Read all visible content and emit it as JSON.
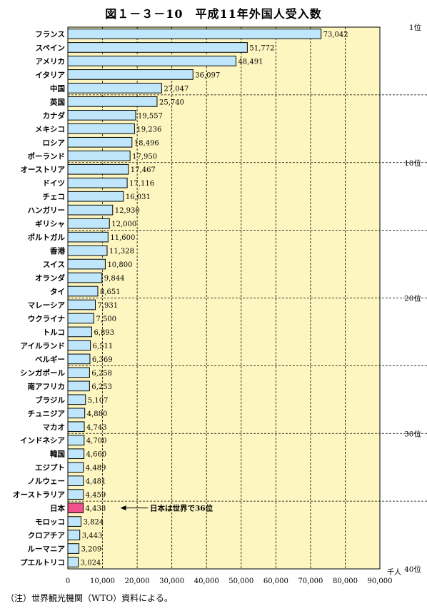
{
  "title": "図１－３－10　平成11年外国人受入数",
  "note": "（注）世界観光機関（WTO）資料による。",
  "chart_data": {
    "type": "bar",
    "orientation": "horizontal",
    "title": "図１－３－10　平成11年外国人受入数",
    "xlabel": "",
    "ylabel": "",
    "unit_label": "千人",
    "xlim": [
      0,
      90000
    ],
    "x_ticks": [
      "0",
      "10,000",
      "20,000",
      "30,000",
      "40,000",
      "50,000",
      "60,000",
      "70,000",
      "80,000",
      "90,000"
    ],
    "grid": "vertical dashed every 10,000; horizontal dashed every 5 ranks",
    "rank_labels": [
      "1位",
      "10位",
      "20位",
      "30位",
      "40位"
    ],
    "categories": [
      "フランス",
      "スペイン",
      "アメリカ",
      "イタリア",
      "中国",
      "英国",
      "カナダ",
      "メキシコ",
      "ロシア",
      "ポーランド",
      "オーストリア",
      "ドイツ",
      "チェコ",
      "ハンガリー",
      "ギリシャ",
      "ポルトガル",
      "香港",
      "スイス",
      "オランダ",
      "タイ",
      "マレーシア",
      "ウクライナ",
      "トルコ",
      "アイルランド",
      "ベルギー",
      "シンガポール",
      "南アフリカ",
      "ブラジル",
      "チュニジア",
      "マカオ",
      "インドネシア",
      "韓国",
      "エジプト",
      "ノルウェー",
      "オーストラリア",
      "日本",
      "モロッコ",
      "クロアチア",
      "ルーマニア",
      "プエルトリコ"
    ],
    "values": [
      73042,
      51772,
      48491,
      36097,
      27047,
      25740,
      19557,
      19236,
      18496,
      17950,
      17467,
      17116,
      16031,
      12930,
      12000,
      11600,
      11328,
      10800,
      9844,
      8651,
      7931,
      7500,
      6893,
      6511,
      6369,
      6258,
      6253,
      5107,
      4880,
      4743,
      4700,
      4660,
      4489,
      4481,
      4459,
      4438,
      3824,
      3443,
      3209,
      3024
    ],
    "value_labels": [
      "73,042",
      "51,772",
      "48,491",
      "36,097",
      "27,047",
      "25,740",
      "19,557",
      "19,236",
      "18,496",
      "17,950",
      "17,467",
      "17,116",
      "16,031",
      "12,930",
      "12,000",
      "11,600",
      "11,328",
      "10,800",
      "9,844",
      "8,651",
      "7,931",
      "7,500",
      "6,893",
      "6,511",
      "6,369",
      "6,258",
      "6,253",
      "5,107",
      "4,880",
      "4,743",
      "4,700",
      "4,660",
      "4,489",
      "4,481",
      "4,459",
      "4,438",
      "3,824",
      "3,443",
      "3,209",
      "3,024"
    ],
    "highlight": "日本",
    "annotation": "日本は世界で36位",
    "colors": {
      "plot_bg": "#fdf6c0",
      "bar": "#bfe6fb",
      "highlight_bar": "#f0508c",
      "grid": "#000000"
    }
  }
}
